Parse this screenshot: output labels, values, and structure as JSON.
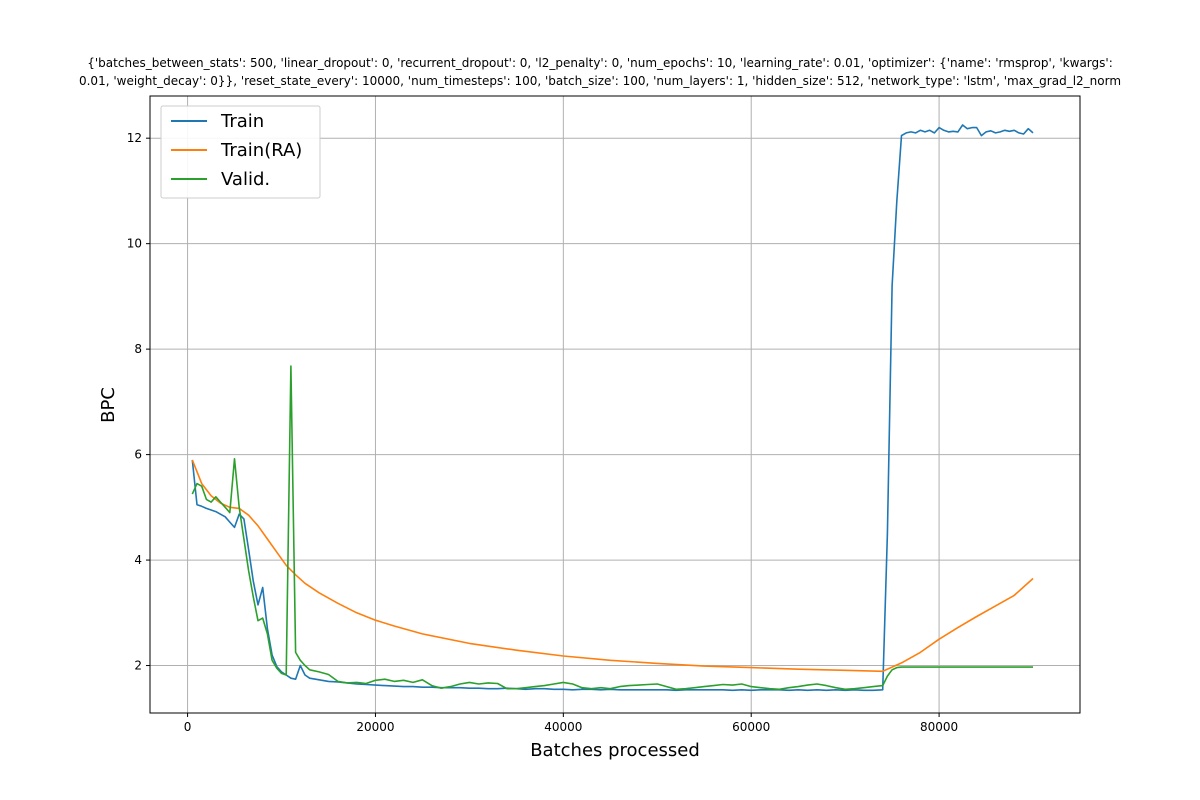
{
  "chart_data": {
    "type": "line",
    "title_lines": [
      "{'batches_between_stats': 500, 'linear_dropout': 0, 'recurrent_dropout': 0, 'l2_penalty': 0, 'num_epochs': 10, 'learning_rate': 0.01, 'optimizer': {'name': 'rmsprop', 'kwargs':",
      "0.01, 'weight_decay': 0}}, 'reset_state_every': 10000, 'num_timesteps': 100, 'batch_size': 100, 'num_layers': 1, 'hidden_size': 512, 'network_type': 'lstm', 'max_grad_l2_norm"
    ],
    "xlabel": "Batches processed",
    "ylabel": "BPC",
    "xlim": [
      -4000,
      95000
    ],
    "ylim": [
      1.1,
      12.8
    ],
    "xticks": [
      0,
      20000,
      40000,
      60000,
      80000
    ],
    "yticks": [
      2,
      4,
      6,
      8,
      10,
      12
    ],
    "grid": true,
    "legend_position": "top-left",
    "series": [
      {
        "name": "Train",
        "color": "#1f77b4",
        "points": [
          [
            500,
            5.9
          ],
          [
            1000,
            5.05
          ],
          [
            1500,
            5.02
          ],
          [
            2000,
            4.98
          ],
          [
            2500,
            4.95
          ],
          [
            3000,
            4.92
          ],
          [
            3500,
            4.87
          ],
          [
            4000,
            4.82
          ],
          [
            4500,
            4.72
          ],
          [
            5000,
            4.62
          ],
          [
            5500,
            4.87
          ],
          [
            6000,
            4.78
          ],
          [
            6500,
            4.2
          ],
          [
            7000,
            3.6
          ],
          [
            7500,
            3.15
          ],
          [
            8000,
            3.48
          ],
          [
            8500,
            2.7
          ],
          [
            9000,
            2.2
          ],
          [
            9500,
            1.98
          ],
          [
            10000,
            1.88
          ],
          [
            10500,
            1.82
          ],
          [
            11000,
            1.76
          ],
          [
            11500,
            1.74
          ],
          [
            12000,
            2.0
          ],
          [
            12500,
            1.82
          ],
          [
            13000,
            1.76
          ],
          [
            14000,
            1.73
          ],
          [
            15000,
            1.7
          ],
          [
            16000,
            1.69
          ],
          [
            17000,
            1.67
          ],
          [
            18000,
            1.65
          ],
          [
            19000,
            1.64
          ],
          [
            20000,
            1.63
          ],
          [
            21000,
            1.62
          ],
          [
            22000,
            1.61
          ],
          [
            23000,
            1.6
          ],
          [
            24000,
            1.6
          ],
          [
            25000,
            1.59
          ],
          [
            26000,
            1.59
          ],
          [
            27000,
            1.58
          ],
          [
            28000,
            1.58
          ],
          [
            29000,
            1.58
          ],
          [
            30000,
            1.57
          ],
          [
            31000,
            1.57
          ],
          [
            32000,
            1.56
          ],
          [
            33000,
            1.56
          ],
          [
            34000,
            1.57
          ],
          [
            35000,
            1.56
          ],
          [
            36000,
            1.55
          ],
          [
            37000,
            1.56
          ],
          [
            38000,
            1.56
          ],
          [
            39000,
            1.55
          ],
          [
            40000,
            1.55
          ],
          [
            41000,
            1.54
          ],
          [
            42000,
            1.55
          ],
          [
            43000,
            1.55
          ],
          [
            44000,
            1.54
          ],
          [
            45000,
            1.55
          ],
          [
            46000,
            1.54
          ],
          [
            47000,
            1.54
          ],
          [
            48000,
            1.54
          ],
          [
            49000,
            1.54
          ],
          [
            50000,
            1.54
          ],
          [
            51000,
            1.54
          ],
          [
            52000,
            1.53
          ],
          [
            53000,
            1.54
          ],
          [
            54000,
            1.54
          ],
          [
            55000,
            1.54
          ],
          [
            56000,
            1.54
          ],
          [
            57000,
            1.54
          ],
          [
            58000,
            1.53
          ],
          [
            59000,
            1.54
          ],
          [
            60000,
            1.53
          ],
          [
            61000,
            1.54
          ],
          [
            62000,
            1.54
          ],
          [
            63000,
            1.54
          ],
          [
            64000,
            1.53
          ],
          [
            65000,
            1.54
          ],
          [
            66000,
            1.53
          ],
          [
            67000,
            1.54
          ],
          [
            68000,
            1.53
          ],
          [
            69000,
            1.54
          ],
          [
            70000,
            1.53
          ],
          [
            71000,
            1.54
          ],
          [
            72000,
            1.53
          ],
          [
            73000,
            1.53
          ],
          [
            74000,
            1.54
          ],
          [
            74500,
            4.5
          ],
          [
            75000,
            9.2
          ],
          [
            75500,
            10.8
          ],
          [
            76000,
            12.05
          ],
          [
            76500,
            12.1
          ],
          [
            77000,
            12.12
          ],
          [
            77500,
            12.1
          ],
          [
            78000,
            12.15
          ],
          [
            78500,
            12.12
          ],
          [
            79000,
            12.15
          ],
          [
            79500,
            12.1
          ],
          [
            80000,
            12.2
          ],
          [
            80500,
            12.15
          ],
          [
            81000,
            12.12
          ],
          [
            81500,
            12.13
          ],
          [
            82000,
            12.12
          ],
          [
            82500,
            12.25
          ],
          [
            83000,
            12.18
          ],
          [
            83500,
            12.2
          ],
          [
            84000,
            12.2
          ],
          [
            84500,
            12.05
          ],
          [
            85000,
            12.12
          ],
          [
            85500,
            12.14
          ],
          [
            86000,
            12.1
          ],
          [
            86500,
            12.12
          ],
          [
            87000,
            12.15
          ],
          [
            87500,
            12.13
          ],
          [
            88000,
            12.15
          ],
          [
            88500,
            12.1
          ],
          [
            89000,
            12.08
          ],
          [
            89500,
            12.18
          ],
          [
            90000,
            12.1
          ]
        ]
      },
      {
        "name": "Train(RA)",
        "color": "#ff7f0e",
        "points": [
          [
            500,
            5.9
          ],
          [
            1500,
            5.45
          ],
          [
            2500,
            5.22
          ],
          [
            3500,
            5.08
          ],
          [
            4500,
            5.0
          ],
          [
            5500,
            4.98
          ],
          [
            6500,
            4.85
          ],
          [
            7500,
            4.65
          ],
          [
            8500,
            4.4
          ],
          [
            9500,
            4.15
          ],
          [
            10500,
            3.9
          ],
          [
            11500,
            3.72
          ],
          [
            12500,
            3.56
          ],
          [
            14000,
            3.38
          ],
          [
            16000,
            3.18
          ],
          [
            18000,
            3.0
          ],
          [
            20000,
            2.86
          ],
          [
            22000,
            2.75
          ],
          [
            25000,
            2.6
          ],
          [
            30000,
            2.42
          ],
          [
            35000,
            2.29
          ],
          [
            40000,
            2.18
          ],
          [
            45000,
            2.1
          ],
          [
            50000,
            2.04
          ],
          [
            55000,
            1.99
          ],
          [
            60000,
            1.96
          ],
          [
            65000,
            1.93
          ],
          [
            70000,
            1.91
          ],
          [
            74000,
            1.89
          ],
          [
            76000,
            2.05
          ],
          [
            78000,
            2.25
          ],
          [
            80000,
            2.5
          ],
          [
            82000,
            2.72
          ],
          [
            84000,
            2.93
          ],
          [
            86000,
            3.13
          ],
          [
            88000,
            3.33
          ],
          [
            90000,
            3.65
          ]
        ]
      },
      {
        "name": "Valid.",
        "color": "#2ca02c",
        "points": [
          [
            500,
            5.25
          ],
          [
            1000,
            5.45
          ],
          [
            1500,
            5.4
          ],
          [
            2000,
            5.15
          ],
          [
            2500,
            5.1
          ],
          [
            3000,
            5.2
          ],
          [
            3500,
            5.1
          ],
          [
            4000,
            5.0
          ],
          [
            4500,
            4.9
          ],
          [
            5000,
            5.92
          ],
          [
            5500,
            5.0
          ],
          [
            6000,
            4.4
          ],
          [
            6500,
            3.8
          ],
          [
            7000,
            3.3
          ],
          [
            7500,
            2.85
          ],
          [
            8000,
            2.9
          ],
          [
            8500,
            2.6
          ],
          [
            9000,
            2.1
          ],
          [
            9500,
            1.95
          ],
          [
            10000,
            1.85
          ],
          [
            10500,
            1.82
          ],
          [
            11000,
            7.68
          ],
          [
            11500,
            2.25
          ],
          [
            12000,
            2.1
          ],
          [
            12500,
            2.0
          ],
          [
            13000,
            1.92
          ],
          [
            14000,
            1.88
          ],
          [
            15000,
            1.83
          ],
          [
            16000,
            1.7
          ],
          [
            17000,
            1.67
          ],
          [
            18000,
            1.68
          ],
          [
            19000,
            1.66
          ],
          [
            20000,
            1.72
          ],
          [
            21000,
            1.74
          ],
          [
            22000,
            1.7
          ],
          [
            23000,
            1.72
          ],
          [
            24000,
            1.68
          ],
          [
            25000,
            1.73
          ],
          [
            26000,
            1.62
          ],
          [
            27000,
            1.57
          ],
          [
            28000,
            1.6
          ],
          [
            29000,
            1.65
          ],
          [
            30000,
            1.68
          ],
          [
            31000,
            1.65
          ],
          [
            32000,
            1.67
          ],
          [
            33000,
            1.66
          ],
          [
            34000,
            1.56
          ],
          [
            35000,
            1.56
          ],
          [
            36000,
            1.58
          ],
          [
            37000,
            1.6
          ],
          [
            38000,
            1.62
          ],
          [
            39000,
            1.65
          ],
          [
            40000,
            1.68
          ],
          [
            41000,
            1.65
          ],
          [
            42000,
            1.58
          ],
          [
            43000,
            1.56
          ],
          [
            44000,
            1.58
          ],
          [
            45000,
            1.56
          ],
          [
            46000,
            1.6
          ],
          [
            47000,
            1.62
          ],
          [
            48000,
            1.63
          ],
          [
            49000,
            1.64
          ],
          [
            50000,
            1.65
          ],
          [
            51000,
            1.6
          ],
          [
            52000,
            1.55
          ],
          [
            53000,
            1.56
          ],
          [
            54000,
            1.58
          ],
          [
            55000,
            1.6
          ],
          [
            56000,
            1.62
          ],
          [
            57000,
            1.64
          ],
          [
            58000,
            1.63
          ],
          [
            59000,
            1.65
          ],
          [
            60000,
            1.6
          ],
          [
            61000,
            1.58
          ],
          [
            62000,
            1.56
          ],
          [
            63000,
            1.55
          ],
          [
            64000,
            1.58
          ],
          [
            65000,
            1.6
          ],
          [
            66000,
            1.63
          ],
          [
            67000,
            1.65
          ],
          [
            68000,
            1.62
          ],
          [
            69000,
            1.58
          ],
          [
            70000,
            1.55
          ],
          [
            71000,
            1.56
          ],
          [
            72000,
            1.58
          ],
          [
            73000,
            1.6
          ],
          [
            74000,
            1.62
          ],
          [
            74500,
            1.8
          ],
          [
            75000,
            1.92
          ],
          [
            75500,
            1.96
          ],
          [
            76000,
            1.97
          ],
          [
            80000,
            1.97
          ],
          [
            85000,
            1.97
          ],
          [
            90000,
            1.97
          ]
        ]
      }
    ]
  }
}
